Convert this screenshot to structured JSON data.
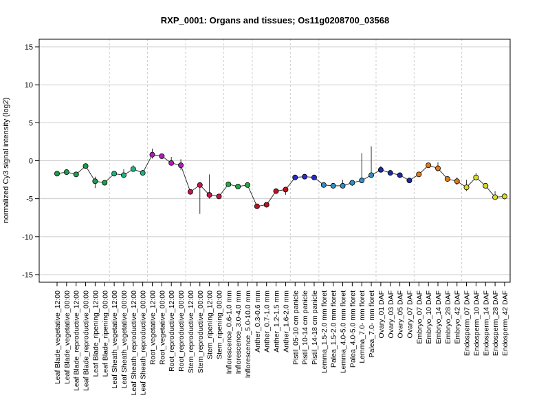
{
  "chart_data": {
    "type": "line",
    "title": "RXP_0001: Organs and tissues; Os11g0208700_03568",
    "ylabel": "normalized Cy3 signal intensity (log2)",
    "xlabel": "",
    "ylim": [
      -16,
      16
    ],
    "yticks": [
      -15,
      -10,
      -5,
      0,
      5,
      10,
      15
    ],
    "grid": true,
    "categories": [
      "Leaf Blade_vegetative_12:00",
      "Leaf Blade_vegetative_00:00",
      "Leaf Blade_reproductive_12:00",
      "Leaf Blade_reproductive_00:00",
      "Leaf Blade_ripening_12:00",
      "Leaf Blade_ripening_00:00",
      "Leaf Sheath_vegetative_12:00",
      "Leaf Sheath_vegetative_00:00",
      "Leaf Sheath_reproductive_12:00",
      "Leaf Sheath_reproductive_00:00",
      "Root_vegetative_12:00",
      "Root_vegetative_00:00",
      "Root_reproductive_12:00",
      "Root_reproductive_00:00",
      "Stem_reproductive_12:00",
      "Stem_reproductive_00:00",
      "Stem_ripening_12:00",
      "Stem_ripening_00:00",
      "Inflorescence_0.6-1.0 mm",
      "Inflorescence_3.0-4.0 mm",
      "Inflorescence_5.0-10.0 mm",
      "Anther_0.3-0.6 mm",
      "Anther_0.7-1.0 mm",
      "Anther_1.2-1.5 mm",
      "Anther_1.6-2.0 mm",
      "Pistil_05-10 cm panicle",
      "Pistil_10-14 cm panicle",
      "Pistil_14-18 cm panicle",
      "Lemma_1.5-2.0 mm floret",
      "Palea_1.5-2.0 mm floret",
      "Lemma_4.0-5.0 mm floret",
      "Palea_4.0-5.0 mm floret",
      "Lemma_7.0- mm floret",
      "Palea_7.0- mm floret",
      "Ovary_01 DAF",
      "Ovary_03 DAF",
      "Ovary_05 DAF",
      "Ovary_07 DAF",
      "Embryo_07 DAF",
      "Embryo_10 DAF",
      "Embryo_14 DAF",
      "Embryo_28 DAF",
      "Embryo_42 DAF",
      "Endosperm_07 DAF",
      "Endosperm_10 DAF",
      "Endosperm_14 DAF",
      "Endosperm_28 DAF",
      "Endosperm_42 DAF"
    ],
    "values": [
      -1.7,
      -1.5,
      -1.8,
      -0.7,
      -2.7,
      -2.9,
      -1.7,
      -1.9,
      -1.1,
      -1.6,
      0.8,
      0.6,
      -0.3,
      -0.6,
      -4.1,
      -3.2,
      -4.5,
      -4.7,
      -3.1,
      -3.4,
      -3.2,
      -6.0,
      -5.8,
      -4.0,
      -3.8,
      -2.2,
      -2.1,
      -2.2,
      -3.2,
      -3.3,
      -3.3,
      -2.9,
      -2.6,
      -1.9,
      -1.2,
      -1.6,
      -1.9,
      -2.6,
      -1.8,
      -0.6,
      -1.0,
      -2.4,
      -2.7,
      -3.5,
      -2.2,
      -3.3,
      -4.8,
      -4.7
    ],
    "error_low": [
      -1.9,
      -1.6,
      -2.0,
      -0.9,
      -3.6,
      -3.2,
      -1.8,
      -2.2,
      -1.4,
      -1.8,
      0.3,
      0.4,
      -0.6,
      -1.2,
      -4.2,
      -7.0,
      -5.0,
      -4.8,
      -3.2,
      -3.6,
      -3.4,
      -6.1,
      -6.0,
      -4.1,
      -4.5,
      -2.4,
      -2.3,
      -2.4,
      -3.4,
      -3.5,
      -3.5,
      -3.3,
      -2.8,
      -2.2,
      -1.5,
      -1.8,
      -2.1,
      -2.7,
      -2.0,
      -0.8,
      -1.4,
      -2.6,
      -3.2,
      -4.0,
      -2.6,
      -3.5,
      -5.0,
      -5.1
    ],
    "error_high": [
      -1.5,
      -1.3,
      -1.6,
      -0.5,
      -2.1,
      -2.6,
      -1.5,
      -1.1,
      -0.6,
      -1.3,
      1.6,
      0.8,
      0.5,
      0.2,
      -3.9,
      -3.0,
      -1.8,
      -4.5,
      -2.9,
      -3.2,
      -3.0,
      -5.9,
      -5.6,
      -3.9,
      -3.7,
      -2.0,
      -1.9,
      -2.0,
      -3.0,
      -3.1,
      -2.5,
      -2.6,
      1.0,
      1.9,
      -0.7,
      -1.3,
      -1.7,
      -2.4,
      -1.6,
      -0.4,
      -0.2,
      -2.2,
      -2.2,
      -2.5,
      -1.6,
      -3.1,
      -4.0,
      -4.3
    ],
    "colors": [
      "#1e9e4a",
      "#1e9e4a",
      "#1e9e4a",
      "#1e9e4a",
      "#1e9e4a",
      "#1e9e4a",
      "#20b27c",
      "#20b27c",
      "#20b27c",
      "#20b27c",
      "#b21ab8",
      "#b21ab8",
      "#b21ab8",
      "#b21ab8",
      "#c4164a",
      "#c4164a",
      "#c4164a",
      "#c4164a",
      "#22a846",
      "#22a846",
      "#22a846",
      "#b8141e",
      "#b8141e",
      "#b8141e",
      "#b8141e",
      "#2a2bc7",
      "#2a2bc7",
      "#2a2bc7",
      "#2b8fc6",
      "#2b8fc6",
      "#2b8fc6",
      "#2b8fc6",
      "#2b8fc6",
      "#2b8fc6",
      "#1a2aa0",
      "#1a2aa0",
      "#1a2aa0",
      "#1a2aa0",
      "#e07a1a",
      "#e07a1a",
      "#e07a1a",
      "#e07a1a",
      "#e07a1a",
      "#d9d92a",
      "#d9d92a",
      "#d9d92a",
      "#d9d92a",
      "#d9d92a"
    ]
  }
}
